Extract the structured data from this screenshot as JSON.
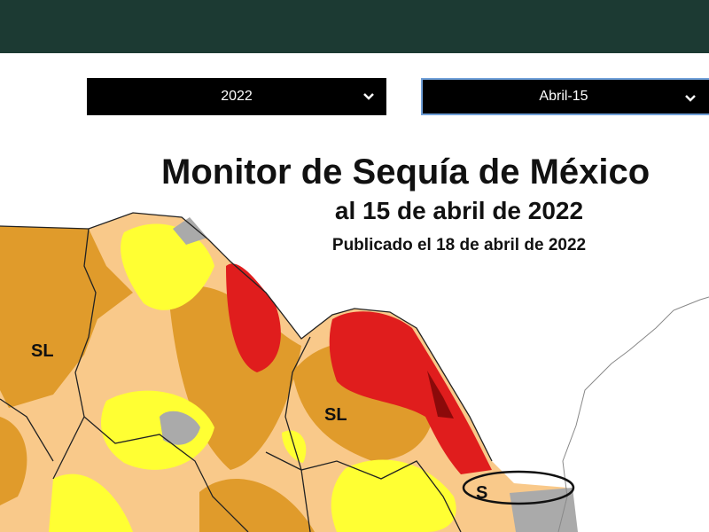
{
  "selects": {
    "year": "2022",
    "date": "Abril-15"
  },
  "map": {
    "title": "Monitor de Sequía de México",
    "subtitle": "al 15 de abril de 2022",
    "published": "Publicado el 18 de abril de 2022",
    "labels": [
      "SL",
      "SL",
      "S"
    ]
  }
}
